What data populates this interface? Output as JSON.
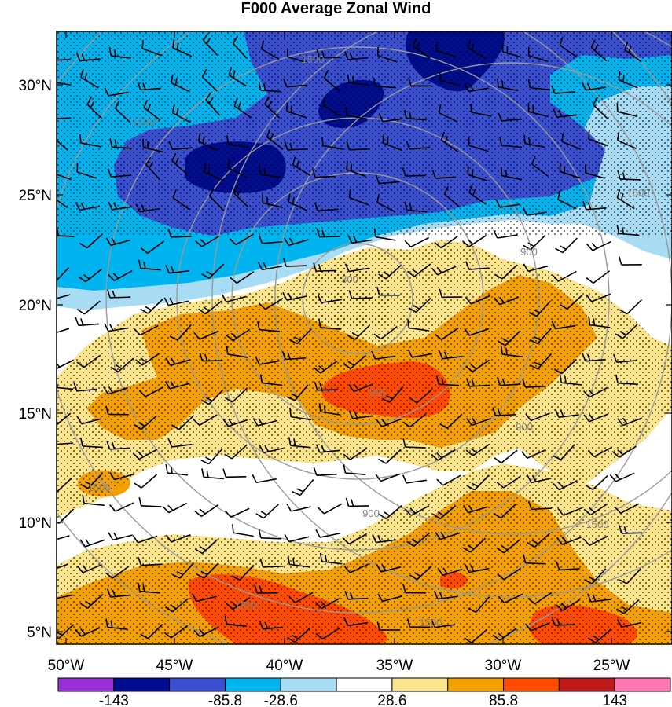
{
  "title": "F000 Average Zonal Wind",
  "colors": {
    "bins": [
      "#9b30d8",
      "#000d8f",
      "#3a4fd0",
      "#00b4f0",
      "#a8dcf5",
      "#ffffff",
      "#fbe58c",
      "#f4a000",
      "#ff4a00",
      "#bf1a1a",
      "#ff78b4"
    ],
    "ring": "#9a9a9a",
    "barb": "#000000",
    "stipple": "#000000"
  },
  "map": {
    "lat_ticks": [
      "30°N",
      "25°N",
      "20°N",
      "15°N",
      "10°N",
      "5°N"
    ],
    "lon_ticks": [
      "50°W",
      "45°W",
      "40°W",
      "35°W",
      "30°W",
      "25°W"
    ],
    "colorbar_labels": [
      "-143",
      "-85.8",
      "-28.6",
      "28.6",
      "85.8",
      "143"
    ],
    "ring_labels": [
      "300",
      "300",
      "900",
      "900",
      "900",
      "1500",
      "1500",
      "1500",
      "1500",
      "1500",
      "1500",
      "1500"
    ]
  }
}
